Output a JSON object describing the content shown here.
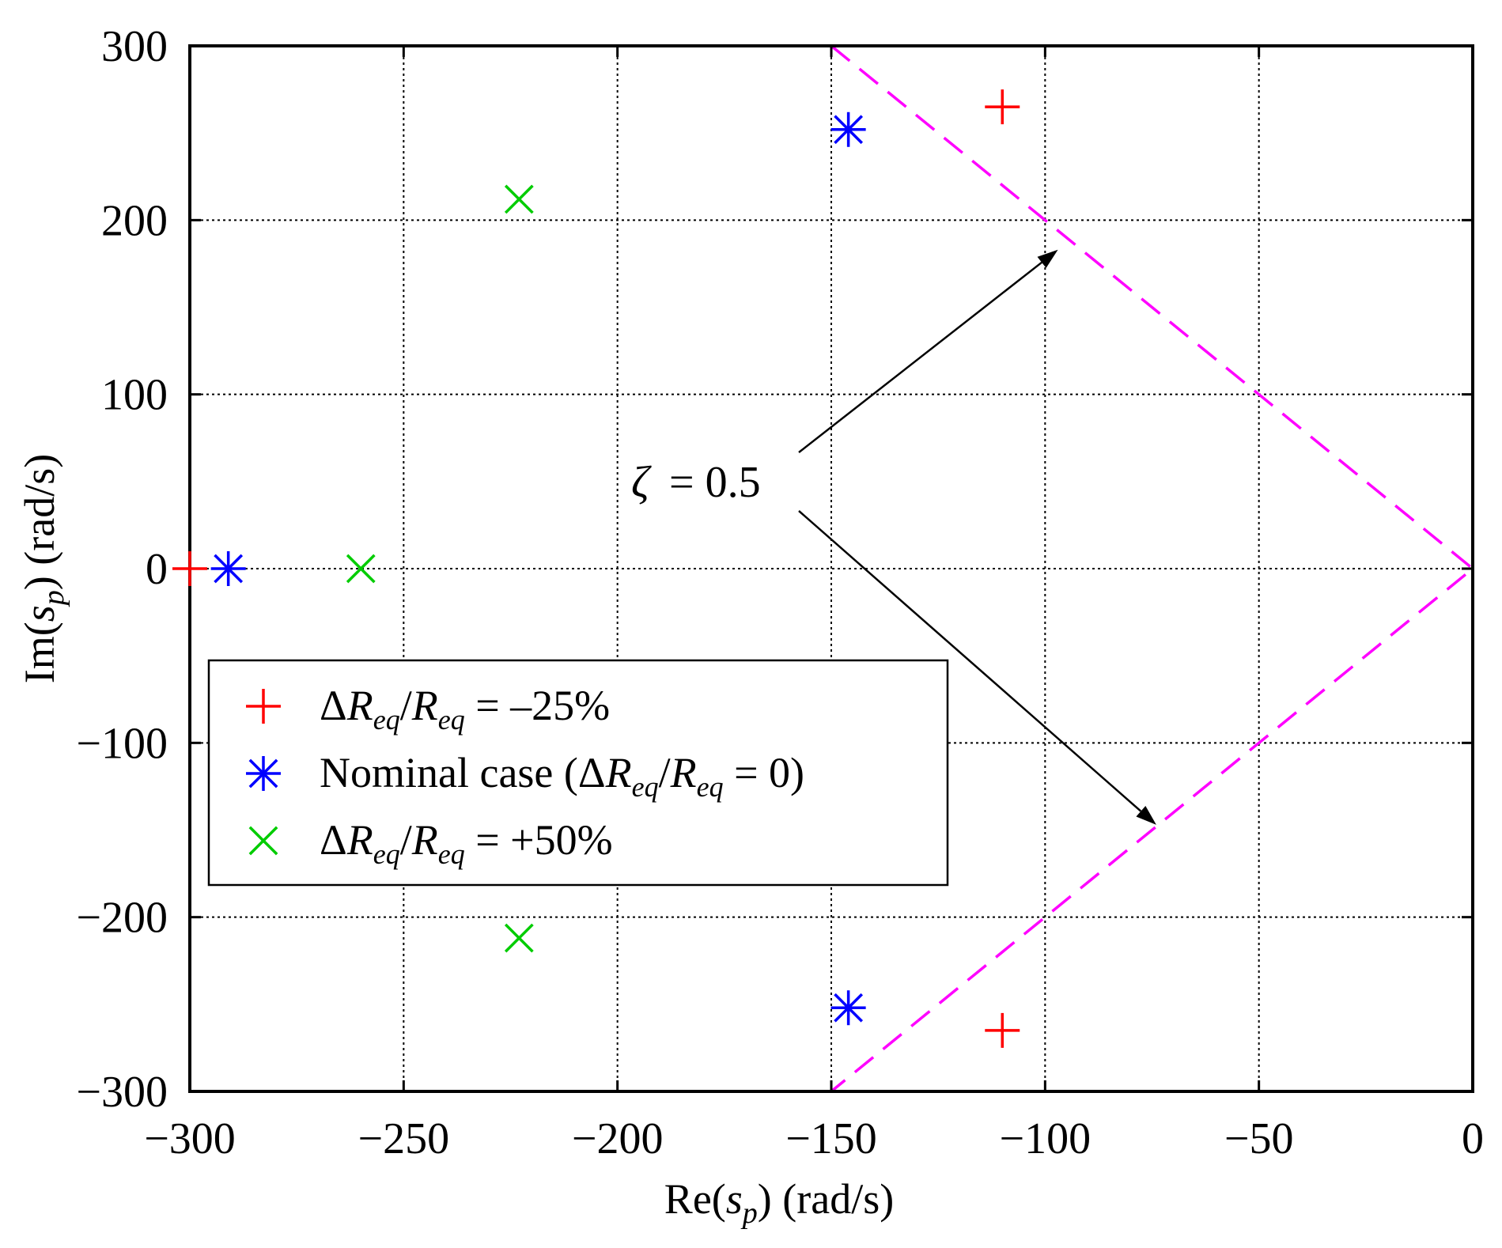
{
  "chart_data": {
    "type": "scatter",
    "title": "",
    "xlabel": "Re(s_p) (rad/s)",
    "ylabel": "Im(s_p) (rad/s)",
    "xlim": [
      -300,
      0
    ],
    "ylim": [
      -300,
      300
    ],
    "xticks": [
      -300,
      -250,
      -200,
      -150,
      -100,
      -50,
      0
    ],
    "yticks": [
      -300,
      -200,
      -100,
      0,
      100,
      200,
      300
    ],
    "xtick_labels": [
      "−300",
      "−250",
      "−200",
      "−150",
      "−100",
      "−50",
      "0"
    ],
    "ytick_labels": [
      "−300",
      "−200",
      "−100",
      "0",
      "100",
      "200",
      "300"
    ],
    "grid": true,
    "legend_position": "lower-left",
    "series": [
      {
        "name": "ΔReq/Req = –25%",
        "marker": "plus",
        "color": "#ff0000",
        "points": [
          [
            -300,
            0
          ],
          [
            -110,
            265
          ],
          [
            -110,
            -265
          ]
        ]
      },
      {
        "name": "Nominal case (ΔReq/Req = 0)",
        "marker": "asterisk",
        "color": "#0000ff",
        "points": [
          [
            -291,
            0
          ],
          [
            -146,
            252
          ],
          [
            -146,
            -252
          ]
        ]
      },
      {
        "name": "ΔReq/Req = +50%",
        "marker": "x",
        "color": "#00cc00",
        "points": [
          [
            -260,
            0
          ],
          [
            -223,
            212
          ],
          [
            -223,
            -212
          ]
        ]
      }
    ],
    "damping_line": {
      "label": "ζ = 0.5",
      "color": "#ff00ff",
      "points": [
        [
          -150,
          300
        ],
        [
          0,
          0
        ],
        [
          -150,
          -300
        ]
      ]
    },
    "annotation": {
      "text": "ζ = 0.5",
      "zeta_symbol": "ζ",
      "value_text": "= 0.5",
      "arrow_targets": [
        [
          -97,
          183
        ],
        [
          -74,
          -147
        ]
      ]
    }
  },
  "axis": {
    "xlabel_prefix": "Re(",
    "ylabel_prefix": "Im(",
    "label_var": "s",
    "label_sub": "p",
    "label_suffix": ") (rad/s)"
  },
  "legend": {
    "entries": [
      {
        "parts": [
          "Δ",
          "R",
          "eq",
          "/",
          "R",
          "eq",
          " = –25%"
        ]
      },
      {
        "parts": [
          "Nominal case (Δ",
          "R",
          "eq",
          "/",
          "R",
          "eq",
          " = 0)"
        ]
      },
      {
        "parts": [
          "Δ",
          "R",
          "eq",
          "/",
          "R",
          "eq",
          " = +50%"
        ]
      }
    ]
  }
}
